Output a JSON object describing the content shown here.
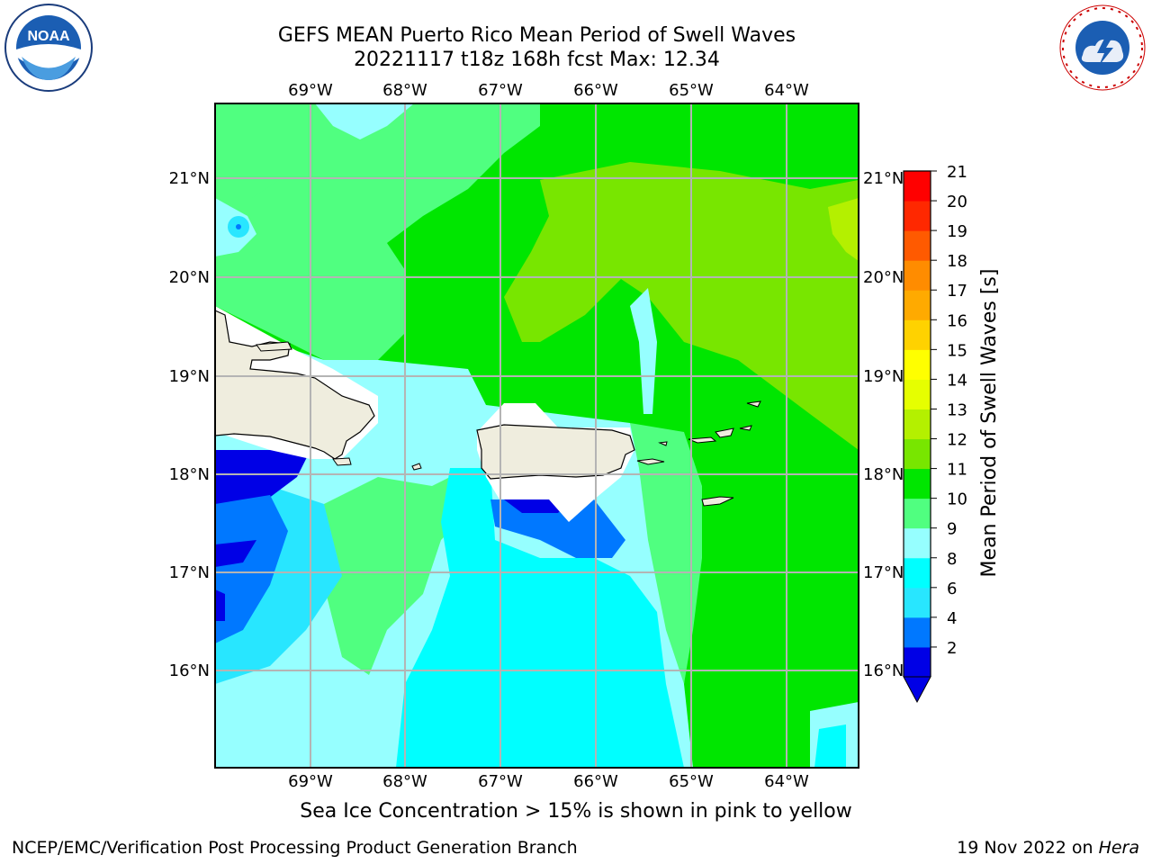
{
  "header": {
    "title_line1": "GEFS MEAN Puerto Rico Mean Period of Swell Waves",
    "title_line2": "20221117 t18z 168h fcst   Max: 12.34"
  },
  "map": {
    "lon_labels": [
      "69°W",
      "68°W",
      "67°W",
      "66°W",
      "65°W",
      "64°W"
    ],
    "lat_labels": [
      "21°N",
      "20°N",
      "19°N",
      "18°N",
      "17°N",
      "16°N"
    ]
  },
  "colorbar": {
    "label": "Mean Period of Swell Waves [s]",
    "ticks": [
      "21",
      "20",
      "19",
      "18",
      "17",
      "16",
      "15",
      "14",
      "13",
      "12",
      "11",
      "10",
      "9",
      "8",
      "6",
      "4",
      "2"
    ],
    "colors": [
      "#0000e6",
      "#0078ff",
      "#28e6ff",
      "#00ffff",
      "#96ffff",
      "#50ff80",
      "#00e600",
      "#78e600",
      "#b4f000",
      "#e6ff00",
      "#ffff00",
      "#ffd200",
      "#ffaa00",
      "#ff8c00",
      "#ff5a00",
      "#ff2800",
      "#ff0000"
    ]
  },
  "footer": {
    "sea_ice_note": "Sea Ice Concentration > 15% is shown in pink to yellow",
    "left": "NCEP/EMC/Verification Post Processing Product Generation Branch",
    "right_prefix": "19 Nov 2022 on ",
    "right_italic": "Hera"
  },
  "logos": {
    "noaa_text": "NOAA",
    "nws_text": "NATIONAL WEATHER SERVICE"
  }
}
